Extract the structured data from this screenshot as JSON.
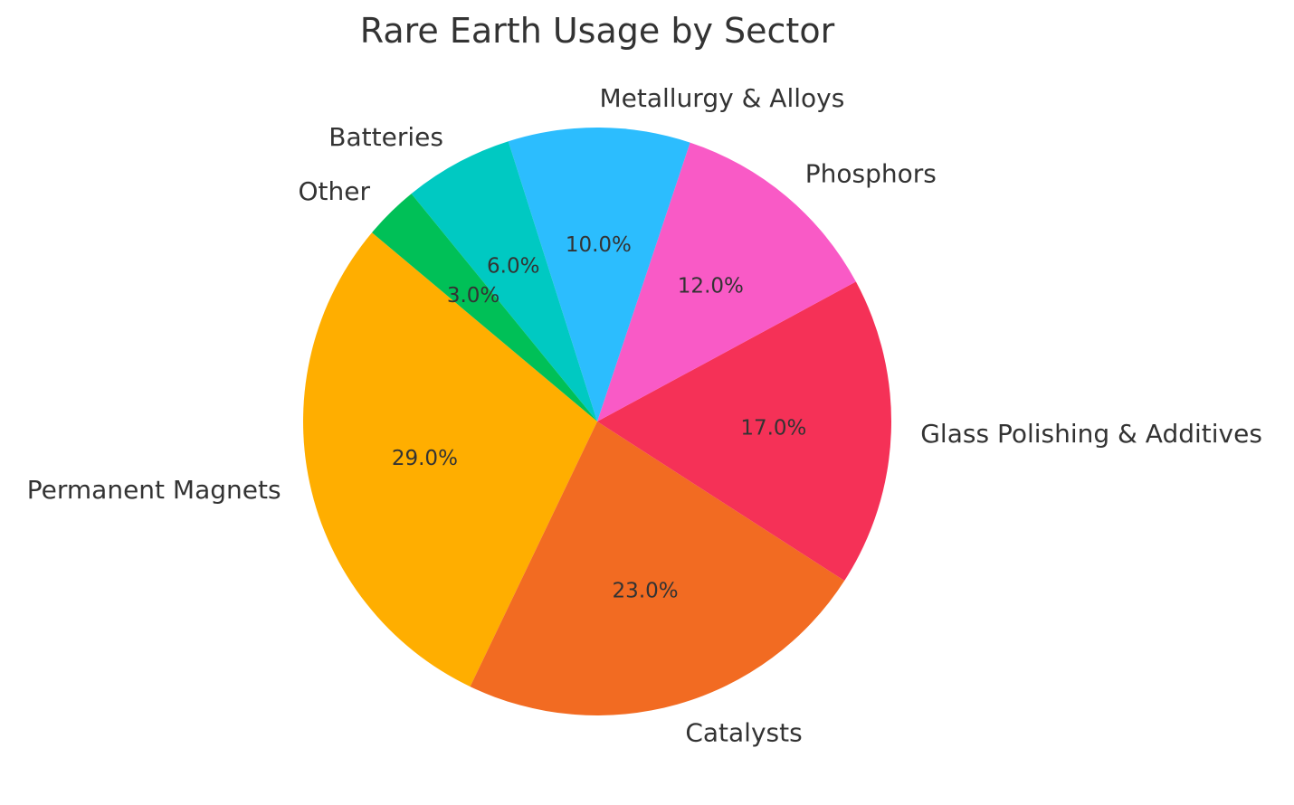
{
  "chart_data": {
    "type": "pie",
    "title": "Rare Earth Usage by Sector",
    "labels": [
      "Permanent Magnets",
      "Catalysts",
      "Glass Polishing & Additives",
      "Phosphors",
      "Metallurgy & Alloys",
      "Batteries",
      "Other"
    ],
    "values": [
      29.0,
      23.0,
      17.0,
      12.0,
      10.0,
      6.0,
      3.0
    ],
    "value_labels": [
      "29.0%",
      "23.0%",
      "17.0%",
      "12.0%",
      "10.0%",
      "6.0%",
      "3.0%"
    ],
    "colors": [
      "#FFAE00",
      "#F26B22",
      "#F53157",
      "#F95AC6",
      "#2CBDFE",
      "#00C9C2",
      "#00C057"
    ],
    "start_angle_deg": 140,
    "direction": "counterclockwise",
    "legend": "none"
  }
}
